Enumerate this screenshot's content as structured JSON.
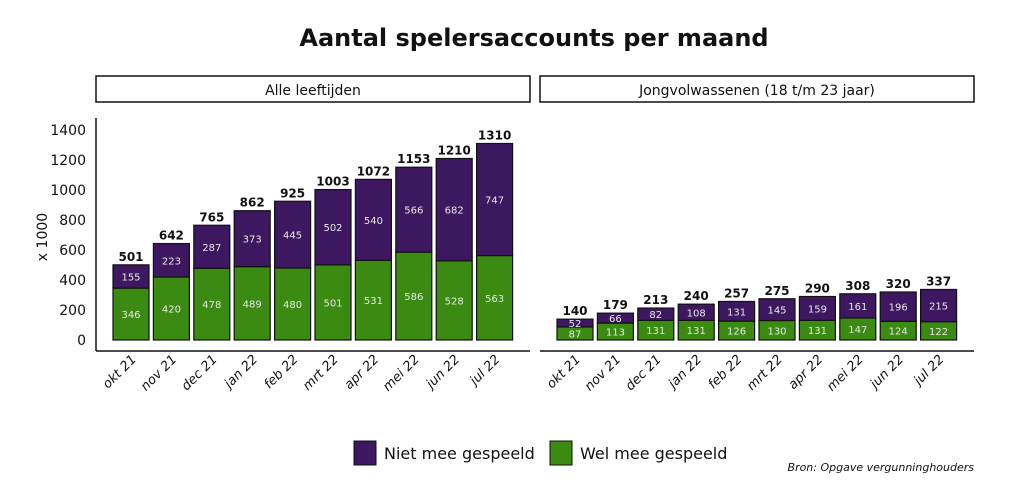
{
  "chart_data": {
    "type": "bar",
    "stacked": true,
    "title": "Aantal spelersaccounts per maand",
    "ylabel": "x 1000",
    "ylim": [
      0,
      1400
    ],
    "yticks": [
      0,
      200,
      400,
      600,
      800,
      1000,
      1200,
      1400
    ],
    "categories": [
      "okt 21",
      "nov 21",
      "dec 21",
      "jan 22",
      "feb 22",
      "mrt 22",
      "apr 22",
      "mei 22",
      "jun 22",
      "jul 22"
    ],
    "legend": {
      "placement": "bottom",
      "entries": [
        {
          "name": "Niet mee gespeeld",
          "color": "#3d1760"
        },
        {
          "name": "Wel mee gespeeld",
          "color": "#3b8a12"
        }
      ]
    },
    "source": "Bron: Opgave vergunninghouders",
    "panels": [
      {
        "title": "Alle leeftijden",
        "totals": [
          501,
          642,
          765,
          862,
          925,
          1003,
          1072,
          1153,
          1210,
          1310
        ],
        "series": [
          {
            "name": "Wel mee gespeeld",
            "values": [
              346,
              420,
              478,
              489,
              480,
              501,
              531,
              586,
              528,
              563
            ]
          },
          {
            "name": "Niet mee gespeeld",
            "values": [
              155,
              223,
              287,
              373,
              445,
              502,
              540,
              566,
              682,
              747
            ]
          }
        ]
      },
      {
        "title": "Jongvolwassenen (18 t/m 23 jaar)",
        "totals": [
          140,
          179,
          213,
          240,
          257,
          275,
          290,
          308,
          320,
          337
        ],
        "series": [
          {
            "name": "Wel mee gespeeld",
            "values": [
              87,
              113,
              131,
              131,
              126,
              130,
              131,
              147,
              124,
              122
            ]
          },
          {
            "name": "Niet mee gespeeld",
            "values": [
              52,
              66,
              82,
              108,
              131,
              145,
              159,
              161,
              196,
              215
            ]
          }
        ]
      }
    ]
  }
}
